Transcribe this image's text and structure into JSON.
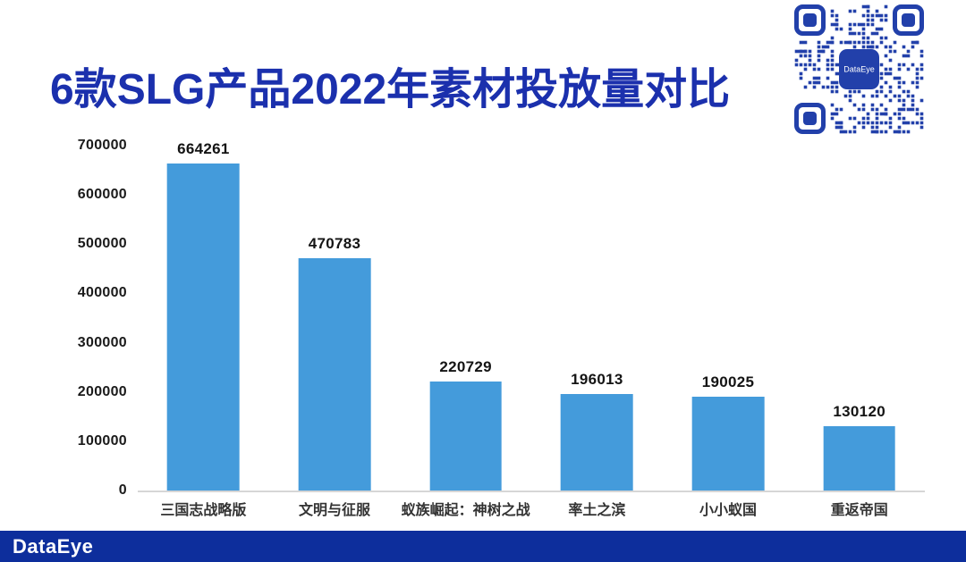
{
  "page": {
    "title": "6款SLG产品2022年素材投放量对比"
  },
  "qr_code": {
    "center_label": "DataEye",
    "color": "#2240aa"
  },
  "footer": {
    "brand": "DataEye",
    "background": "#0d2e9c"
  },
  "colors": {
    "title_blue": "#1b30ad",
    "bar_blue": "#449bdb",
    "footer_blue": "#0d2e9c",
    "qr_blue": "#2240aa",
    "axis_line": "#d6d6d6"
  },
  "chart_data": {
    "type": "bar",
    "title": "6款SLG产品2022年素材投放量对比",
    "categories": [
      "三国志战略版",
      "文明与征服",
      "蚁族崛起：神树之战",
      "率土之滨",
      "小小蚁国",
      "重返帝国"
    ],
    "values": [
      664261,
      470783,
      220729,
      196013,
      190025,
      130120
    ],
    "value_labels": [
      "664261",
      "470783",
      "220729",
      "196013",
      "190025",
      "130120"
    ],
    "xlabel": "",
    "ylabel": "",
    "ylim": [
      0,
      700000
    ],
    "yticks": [
      700000,
      600000,
      500000,
      400000,
      300000,
      200000,
      100000,
      0
    ],
    "ytick_labels": [
      "700000",
      "600000",
      "500000",
      "400000",
      "300000",
      "200000",
      "100000",
      "0"
    ],
    "grid": false,
    "legend": false,
    "bar_color": "#449bdb"
  }
}
